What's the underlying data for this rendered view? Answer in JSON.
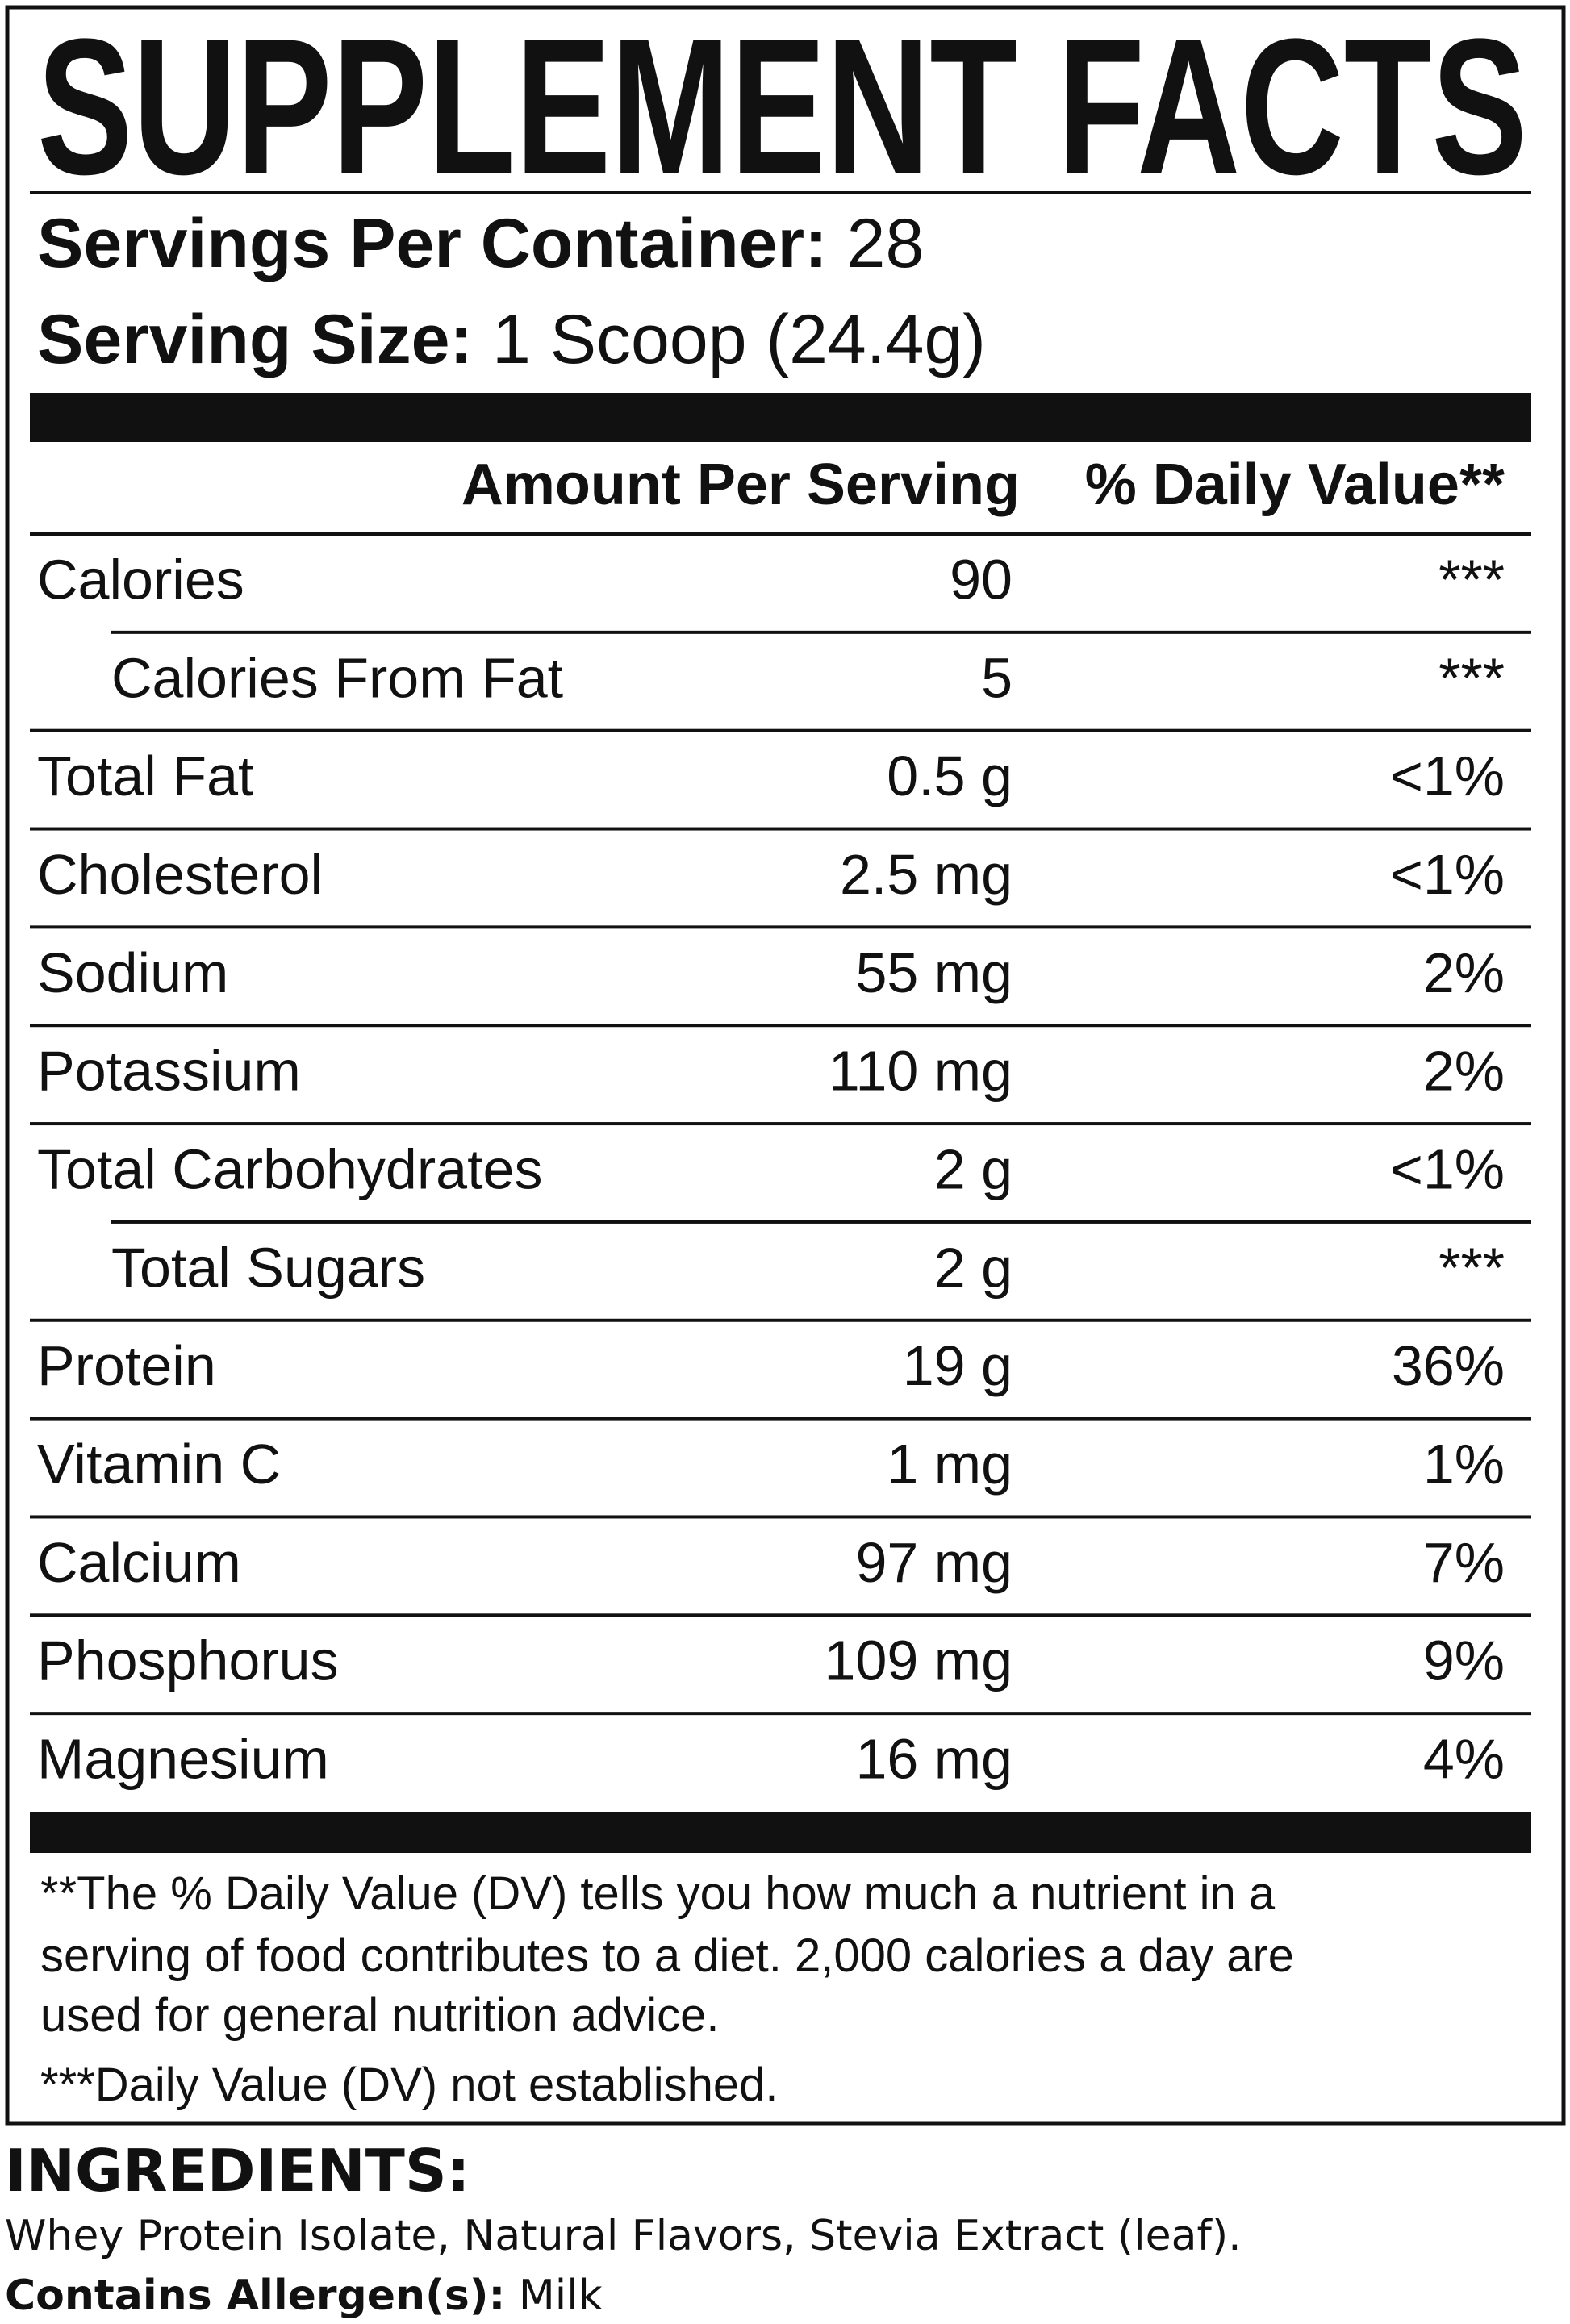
{
  "title": "SUPPLEMENT FACTS",
  "servings_per_container": {
    "label": "Servings Per Container:",
    "value": "28"
  },
  "serving_size": {
    "label": "Serving Size:",
    "value": "1 Scoop (24.4g)"
  },
  "table": {
    "header": {
      "amount": "Amount Per Serving",
      "daily_value": "% Daily Value**"
    },
    "rows": [
      {
        "name": "Calories",
        "amount": "90",
        "daily_value": "***",
        "sub_rows": [
          {
            "name": "Calories From Fat",
            "amount": "5",
            "daily_value": "***"
          }
        ]
      },
      {
        "name": "Total Fat",
        "amount": "0.5 g",
        "daily_value": "<1%"
      },
      {
        "name": "Cholesterol",
        "amount": "2.5 mg",
        "daily_value": "<1%"
      },
      {
        "name": "Sodium",
        "amount": "55 mg",
        "daily_value": "2%"
      },
      {
        "name": "Potassium",
        "amount": "110 mg",
        "daily_value": "2%"
      },
      {
        "name": "Total Carbohydrates",
        "amount": "2 g",
        "daily_value": "<1%",
        "sub_rows": [
          {
            "name": "Total Sugars",
            "amount": "2 g",
            "daily_value": "***"
          }
        ]
      },
      {
        "name": "Protein",
        "amount": "19 g",
        "daily_value": "36%"
      },
      {
        "name": "Vitamin C",
        "amount": "1 mg",
        "daily_value": "1%"
      },
      {
        "name": "Calcium",
        "amount": "97 mg",
        "daily_value": "7%"
      },
      {
        "name": "Phosphorus",
        "amount": "109 mg",
        "daily_value": "9%"
      },
      {
        "name": "Magnesium",
        "amount": "16 mg",
        "daily_value": "4%"
      }
    ]
  },
  "footnotes": [
    "**The % Daily Value (DV) tells you how much a nutrient in a",
    "serving of food contributes to a diet. 2,000 calories a day are",
    "used for general nutrition advice.",
    "***Daily Value (DV) not established."
  ],
  "ingredients": {
    "label": "INGREDIENTS:",
    "text": "Whey Protein Isolate, Natural Flavors, Stevia Extract (leaf)."
  },
  "allergens": {
    "label": "Contains Allergen(s):",
    "text": "Milk"
  }
}
